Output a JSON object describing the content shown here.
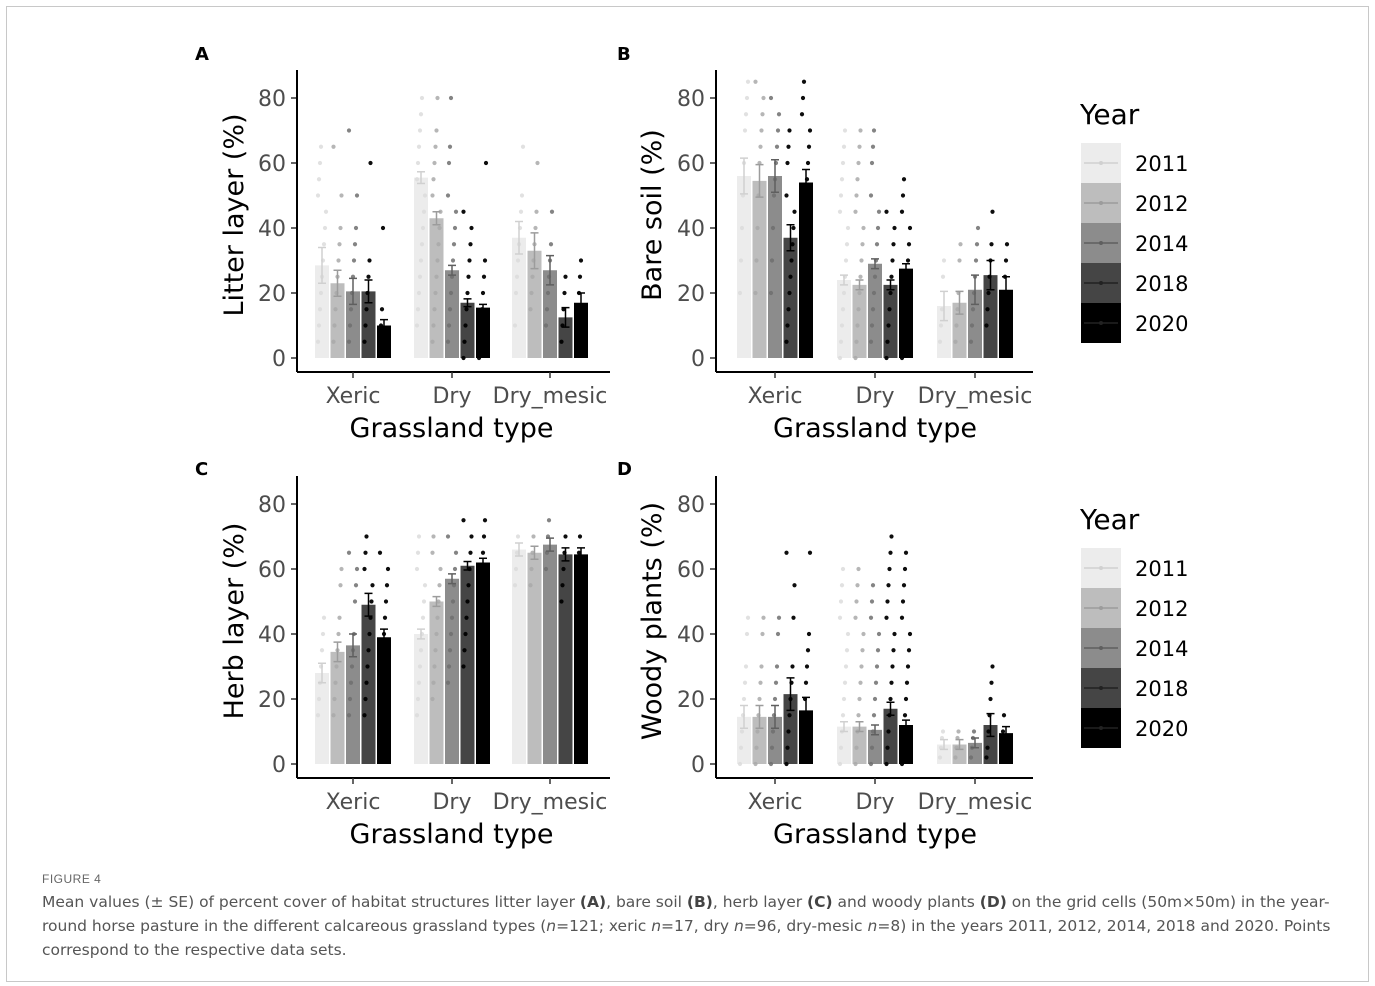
{
  "figure": {
    "label": "FIGURE 4",
    "caption_segments": [
      {
        "t": "Mean values (± SE) of percent cover of habitat structures litter layer "
      },
      {
        "t": "(A)",
        "b": true
      },
      {
        "t": ", bare soil "
      },
      {
        "t": "(B)",
        "b": true
      },
      {
        "t": ", herb layer "
      },
      {
        "t": "(C)",
        "b": true
      },
      {
        "t": " and woody plants "
      },
      {
        "t": "(D)",
        "b": true
      },
      {
        "t": " on the grid cells (50m×50m) in the year-round horse pasture in the different calcareous grassland types ("
      },
      {
        "t": "n",
        "i": true
      },
      {
        "t": "=121; xeric "
      },
      {
        "t": "n",
        "i": true
      },
      {
        "t": "=17, dry "
      },
      {
        "t": "n",
        "i": true
      },
      {
        "t": "=96, dry-mesic "
      },
      {
        "t": "n",
        "i": true
      },
      {
        "t": "=8) in the years 2011, 2012, 2014, 2018 and 2020. Points correspond to the respective data sets."
      }
    ]
  },
  "legend": {
    "title": "Year",
    "years": [
      "2011",
      "2012",
      "2014",
      "2018",
      "2020"
    ],
    "colors": [
      "#ececec",
      "#bdbdbd",
      "#8c8c8c",
      "#454545",
      "#000000"
    ]
  },
  "chart_data": [
    {
      "type": "bar",
      "panel": "A",
      "xlabel": "Grassland type",
      "ylabel": "Litter layer (%)",
      "categories": [
        "Xeric",
        "Dry",
        "Dry_mesic"
      ],
      "yticks": [
        0,
        20,
        40,
        60,
        80
      ],
      "ylim": [
        0,
        88
      ],
      "series": [
        {
          "name": "2011",
          "values": [
            28.5,
            55.5,
            37.0
          ],
          "se": [
            5.5,
            1.8,
            5.0
          ],
          "points": [
            [
              5,
              10,
              15,
              20,
              25,
              30,
              35,
              40,
              45,
              50,
              55,
              60,
              65
            ],
            [
              10,
              15,
              20,
              25,
              30,
              35,
              40,
              45,
              50,
              55,
              60,
              65,
              70,
              75,
              80
            ],
            [
              10,
              20,
              25,
              30,
              35,
              40,
              45,
              50,
              65
            ]
          ]
        },
        {
          "name": "2012",
          "values": [
            23.0,
            43.0,
            33.0
          ],
          "se": [
            4.0,
            2.0,
            5.5
          ],
          "points": [
            [
              5,
              10,
              15,
              20,
              25,
              30,
              35,
              40,
              50,
              65
            ],
            [
              5,
              10,
              15,
              20,
              25,
              30,
              35,
              40,
              45,
              50,
              55,
              60,
              65,
              70,
              80
            ],
            [
              15,
              20,
              25,
              30,
              35,
              40,
              45,
              60
            ]
          ]
        },
        {
          "name": "2014",
          "values": [
            20.5,
            27.0,
            27.0
          ],
          "se": [
            4.0,
            1.5,
            4.5
          ],
          "points": [
            [
              5,
              10,
              15,
              20,
              25,
              30,
              35,
              40,
              50,
              70
            ],
            [
              5,
              10,
              15,
              20,
              25,
              30,
              35,
              40,
              45,
              50,
              60,
              65,
              80
            ],
            [
              10,
              15,
              20,
              25,
              30,
              35,
              45
            ]
          ]
        },
        {
          "name": "2018",
          "values": [
            20.5,
            17.0,
            12.5
          ],
          "se": [
            3.5,
            1.2,
            3.0
          ],
          "points": [
            [
              5,
              10,
              15,
              20,
              25,
              30,
              60
            ],
            [
              0,
              5,
              10,
              15,
              20,
              25,
              30,
              35,
              40,
              45
            ],
            [
              5,
              10,
              15,
              20,
              25
            ]
          ]
        },
        {
          "name": "2020",
          "values": [
            10.0,
            15.5,
            17.0
          ],
          "se": [
            1.8,
            1.0,
            3.0
          ],
          "points": [
            [
              5,
              10,
              15,
              40
            ],
            [
              0,
              5,
              10,
              15,
              20,
              25,
              30,
              60
            ],
            [
              10,
              15,
              20,
              25,
              30
            ]
          ]
        }
      ]
    },
    {
      "type": "bar",
      "panel": "B",
      "xlabel": "Grassland type",
      "ylabel": "Bare soil (%)",
      "categories": [
        "Xeric",
        "Dry",
        "Dry_mesic"
      ],
      "yticks": [
        0,
        20,
        40,
        60,
        80
      ],
      "ylim": [
        0,
        88
      ],
      "series": [
        {
          "name": "2011",
          "values": [
            56.0,
            24.0,
            16.0
          ],
          "se": [
            5.5,
            1.5,
            4.5
          ],
          "points": [
            [
              20,
              30,
              40,
              50,
              60,
              70,
              75,
              80,
              85
            ],
            [
              0,
              5,
              10,
              15,
              20,
              25,
              30,
              35,
              40,
              45,
              50,
              55,
              60,
              65,
              70
            ],
            [
              5,
              10,
              15,
              25,
              30
            ]
          ]
        },
        {
          "name": "2012",
          "values": [
            54.5,
            22.5,
            17.0
          ],
          "se": [
            5.0,
            1.5,
            3.5
          ],
          "points": [
            [
              20,
              30,
              40,
              50,
              60,
              65,
              70,
              75,
              80,
              85
            ],
            [
              0,
              5,
              10,
              15,
              20,
              25,
              30,
              35,
              40,
              45,
              50,
              55,
              60,
              65,
              70
            ],
            [
              5,
              10,
              15,
              20,
              30,
              35
            ]
          ]
        },
        {
          "name": "2014",
          "values": [
            56.0,
            29.0,
            21.0
          ],
          "se": [
            5.0,
            1.5,
            4.5
          ],
          "points": [
            [
              20,
              30,
              40,
              50,
              55,
              60,
              65,
              70,
              75,
              80
            ],
            [
              5,
              10,
              15,
              20,
              25,
              30,
              35,
              40,
              45,
              50,
              60,
              65,
              70
            ],
            [
              5,
              10,
              15,
              20,
              25,
              30,
              35,
              40
            ]
          ]
        },
        {
          "name": "2018",
          "values": [
            37.0,
            22.5,
            25.5
          ],
          "se": [
            4.0,
            1.5,
            4.5
          ],
          "points": [
            [
              5,
              10,
              15,
              20,
              25,
              30,
              35,
              40,
              45,
              50,
              60,
              65,
              70
            ],
            [
              0,
              5,
              10,
              15,
              20,
              25,
              30,
              35,
              40,
              45
            ],
            [
              10,
              15,
              20,
              25,
              30,
              35,
              45
            ]
          ]
        },
        {
          "name": "2020",
          "values": [
            54.0,
            27.5,
            21.0
          ],
          "se": [
            4.0,
            1.5,
            4.0
          ],
          "points": [
            [
              20,
              30,
              40,
              45,
              50,
              55,
              60,
              65,
              70,
              75,
              80,
              85
            ],
            [
              0,
              5,
              10,
              15,
              20,
              25,
              30,
              35,
              40,
              45,
              50,
              55
            ],
            [
              10,
              15,
              20,
              25,
              30,
              35
            ]
          ]
        }
      ]
    },
    {
      "type": "bar",
      "panel": "C",
      "xlabel": "Grassland type",
      "ylabel": "Herb layer (%)",
      "categories": [
        "Xeric",
        "Dry",
        "Dry_mesic"
      ],
      "yticks": [
        0,
        20,
        40,
        60,
        80
      ],
      "ylim": [
        0,
        88
      ],
      "series": [
        {
          "name": "2011",
          "values": [
            28.0,
            40.0,
            66.0
          ],
          "se": [
            3.0,
            1.5,
            2.0
          ],
          "points": [
            [
              15,
              20,
              25,
              30,
              35,
              40,
              45
            ],
            [
              15,
              20,
              25,
              30,
              35,
              40,
              45,
              50,
              55,
              60,
              65,
              70
            ],
            [
              55,
              60,
              65,
              70
            ]
          ]
        },
        {
          "name": "2012",
          "values": [
            34.5,
            50.0,
            65.0
          ],
          "se": [
            3.0,
            1.5,
            2.0
          ],
          "points": [
            [
              15,
              20,
              25,
              30,
              35,
              40,
              45,
              55,
              60
            ],
            [
              20,
              25,
              30,
              35,
              40,
              45,
              50,
              55,
              60,
              65,
              70
            ],
            [
              55,
              60,
              65,
              70
            ]
          ]
        },
        {
          "name": "2014",
          "values": [
            36.5,
            57.0,
            67.5
          ],
          "se": [
            3.5,
            1.5,
            2.0
          ],
          "points": [
            [
              15,
              20,
              25,
              30,
              35,
              40,
              50,
              55,
              60,
              65
            ],
            [
              25,
              30,
              35,
              40,
              45,
              50,
              55,
              60,
              65,
              70
            ],
            [
              60,
              65,
              70,
              75
            ]
          ]
        },
        {
          "name": "2018",
          "values": [
            49.0,
            61.0,
            64.5
          ],
          "se": [
            3.5,
            1.3,
            2.0
          ],
          "points": [
            [
              15,
              20,
              25,
              30,
              35,
              40,
              45,
              50,
              55,
              60,
              65,
              70
            ],
            [
              30,
              35,
              40,
              45,
              50,
              55,
              60,
              65,
              70,
              75
            ],
            [
              50,
              55,
              60,
              65,
              70
            ]
          ]
        },
        {
          "name": "2020",
          "values": [
            39.0,
            62.0,
            64.5
          ],
          "se": [
            2.5,
            1.3,
            2.0
          ],
          "points": [
            [
              20,
              25,
              30,
              35,
              40,
              45,
              50,
              55,
              60,
              65
            ],
            [
              45,
              50,
              55,
              60,
              65,
              70,
              75
            ],
            [
              55,
              60,
              65,
              70
            ]
          ]
        }
      ]
    },
    {
      "type": "bar",
      "panel": "D",
      "xlabel": "Grassland type",
      "ylabel": "Woody plants (%)",
      "categories": [
        "Xeric",
        "Dry",
        "Dry_mesic"
      ],
      "yticks": [
        0,
        20,
        40,
        60,
        80
      ],
      "ylim": [
        0,
        88
      ],
      "series": [
        {
          "name": "2011",
          "values": [
            14.5,
            11.5,
            6.0
          ],
          "se": [
            3.5,
            1.5,
            1.5
          ],
          "points": [
            [
              0,
              5,
              10,
              15,
              20,
              25,
              30,
              40,
              45
            ],
            [
              0,
              5,
              10,
              15,
              20,
              25,
              30,
              35,
              40,
              45,
              50,
              55,
              60
            ],
            [
              2,
              5,
              8,
              10
            ]
          ]
        },
        {
          "name": "2012",
          "values": [
            14.5,
            11.5,
            6.0
          ],
          "se": [
            3.5,
            1.5,
            1.5
          ],
          "points": [
            [
              0,
              5,
              10,
              15,
              20,
              25,
              30,
              40,
              45
            ],
            [
              0,
              5,
              10,
              15,
              20,
              25,
              30,
              35,
              40,
              45,
              50,
              55,
              60
            ],
            [
              2,
              5,
              8,
              10
            ]
          ]
        },
        {
          "name": "2014",
          "values": [
            14.5,
            10.5,
            6.5
          ],
          "se": [
            3.5,
            1.5,
            1.5
          ],
          "points": [
            [
              0,
              5,
              10,
              15,
              20,
              25,
              30,
              40,
              45
            ],
            [
              0,
              5,
              10,
              15,
              20,
              25,
              30,
              35,
              40,
              45,
              50,
              55
            ],
            [
              2,
              5,
              8,
              10
            ]
          ]
        },
        {
          "name": "2018",
          "values": [
            21.5,
            17.0,
            12.0
          ],
          "se": [
            5.0,
            2.0,
            3.5
          ],
          "points": [
            [
              0,
              5,
              10,
              15,
              20,
              25,
              30,
              45,
              55,
              65
            ],
            [
              0,
              5,
              10,
              15,
              20,
              25,
              30,
              35,
              40,
              45,
              50,
              55,
              60,
              65,
              70
            ],
            [
              2,
              5,
              10,
              15,
              20,
              25,
              30
            ]
          ]
        },
        {
          "name": "2020",
          "values": [
            16.5,
            12.0,
            9.5
          ],
          "se": [
            4.0,
            1.5,
            2.0
          ],
          "points": [
            [
              5,
              10,
              15,
              20,
              25,
              30,
              35,
              40,
              65
            ],
            [
              0,
              5,
              10,
              15,
              20,
              25,
              30,
              35,
              40,
              45,
              50,
              55,
              60,
              65
            ],
            [
              5,
              10,
              15
            ]
          ]
        }
      ]
    }
  ]
}
